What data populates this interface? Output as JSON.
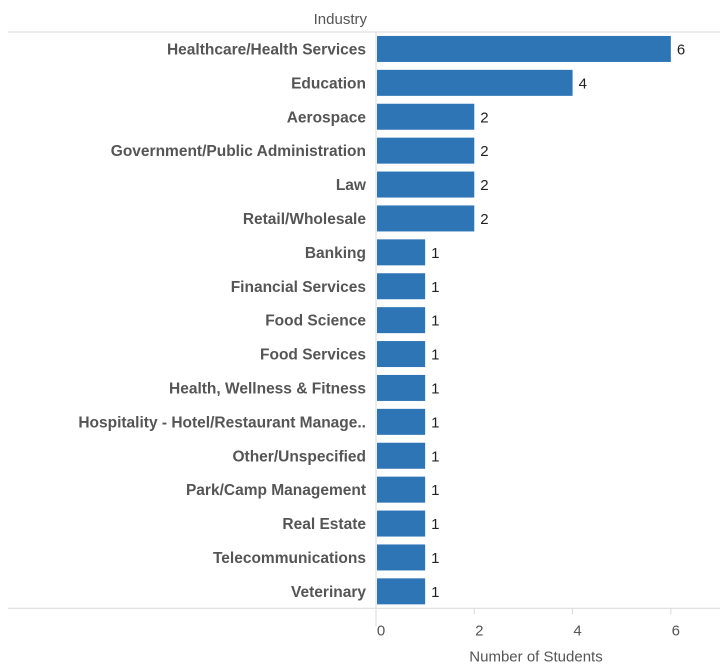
{
  "chart_data": {
    "type": "bar",
    "orientation": "horizontal",
    "row_header": "Industry",
    "xlabel": "Number of Students",
    "xlim": [
      0,
      7
    ],
    "xticks": [
      0,
      2,
      4,
      6
    ],
    "grid": false,
    "bar_color": "#2e75b6",
    "categories": [
      "Healthcare/Health Services",
      "Education",
      "Aerospace",
      "Government/Public Administration",
      "Law",
      "Retail/Wholesale",
      "Banking",
      "Financial Services",
      "Food Science",
      "Food Services",
      "Health, Wellness & Fitness",
      "Hospitality - Hotel/Restaurant Manage..",
      "Other/Unspecified",
      "Park/Camp Management",
      "Real Estate",
      "Telecommunications",
      "Veterinary"
    ],
    "values": [
      6,
      4,
      2,
      2,
      2,
      2,
      1,
      1,
      1,
      1,
      1,
      1,
      1,
      1,
      1,
      1,
      1
    ]
  }
}
